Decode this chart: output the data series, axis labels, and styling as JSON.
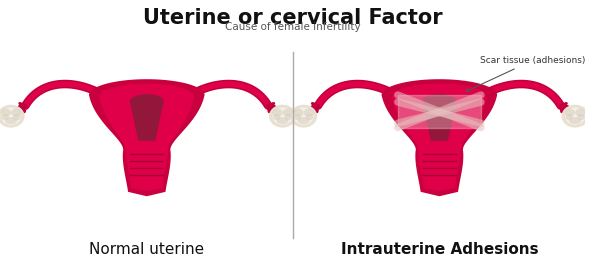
{
  "title": "Uterine or cervical Factor",
  "subtitle": "Cause of female infertility",
  "label_left": "Normal uterine",
  "label_right": "Intrauterine Adhesions",
  "annotation": "Scar tissue (adhesions)",
  "bg_color": "#ffffff",
  "uterus_outer": "#c8003e",
  "uterus_inner": "#e0004a",
  "uterus_cavity": "#8b1a3a",
  "uterus_dark": "#9b0035",
  "cervix_outer": "#b0003a",
  "cervix_ridge": "#8b0030",
  "ovary_base": "#e8e0d0",
  "ovary_light": "#f5f0e8",
  "ovary_mid": "#d8cfc0",
  "tube_outer": "#c0003c",
  "tube_inner": "#e0004a",
  "scar_fill": "#f5d5d5",
  "scar_line": "#e8c0c0",
  "divider_color": "#aaaaaa",
  "title_fontsize": 15,
  "subtitle_fontsize": 7.5,
  "label_fontsize": 11,
  "annot_fontsize": 6.5
}
